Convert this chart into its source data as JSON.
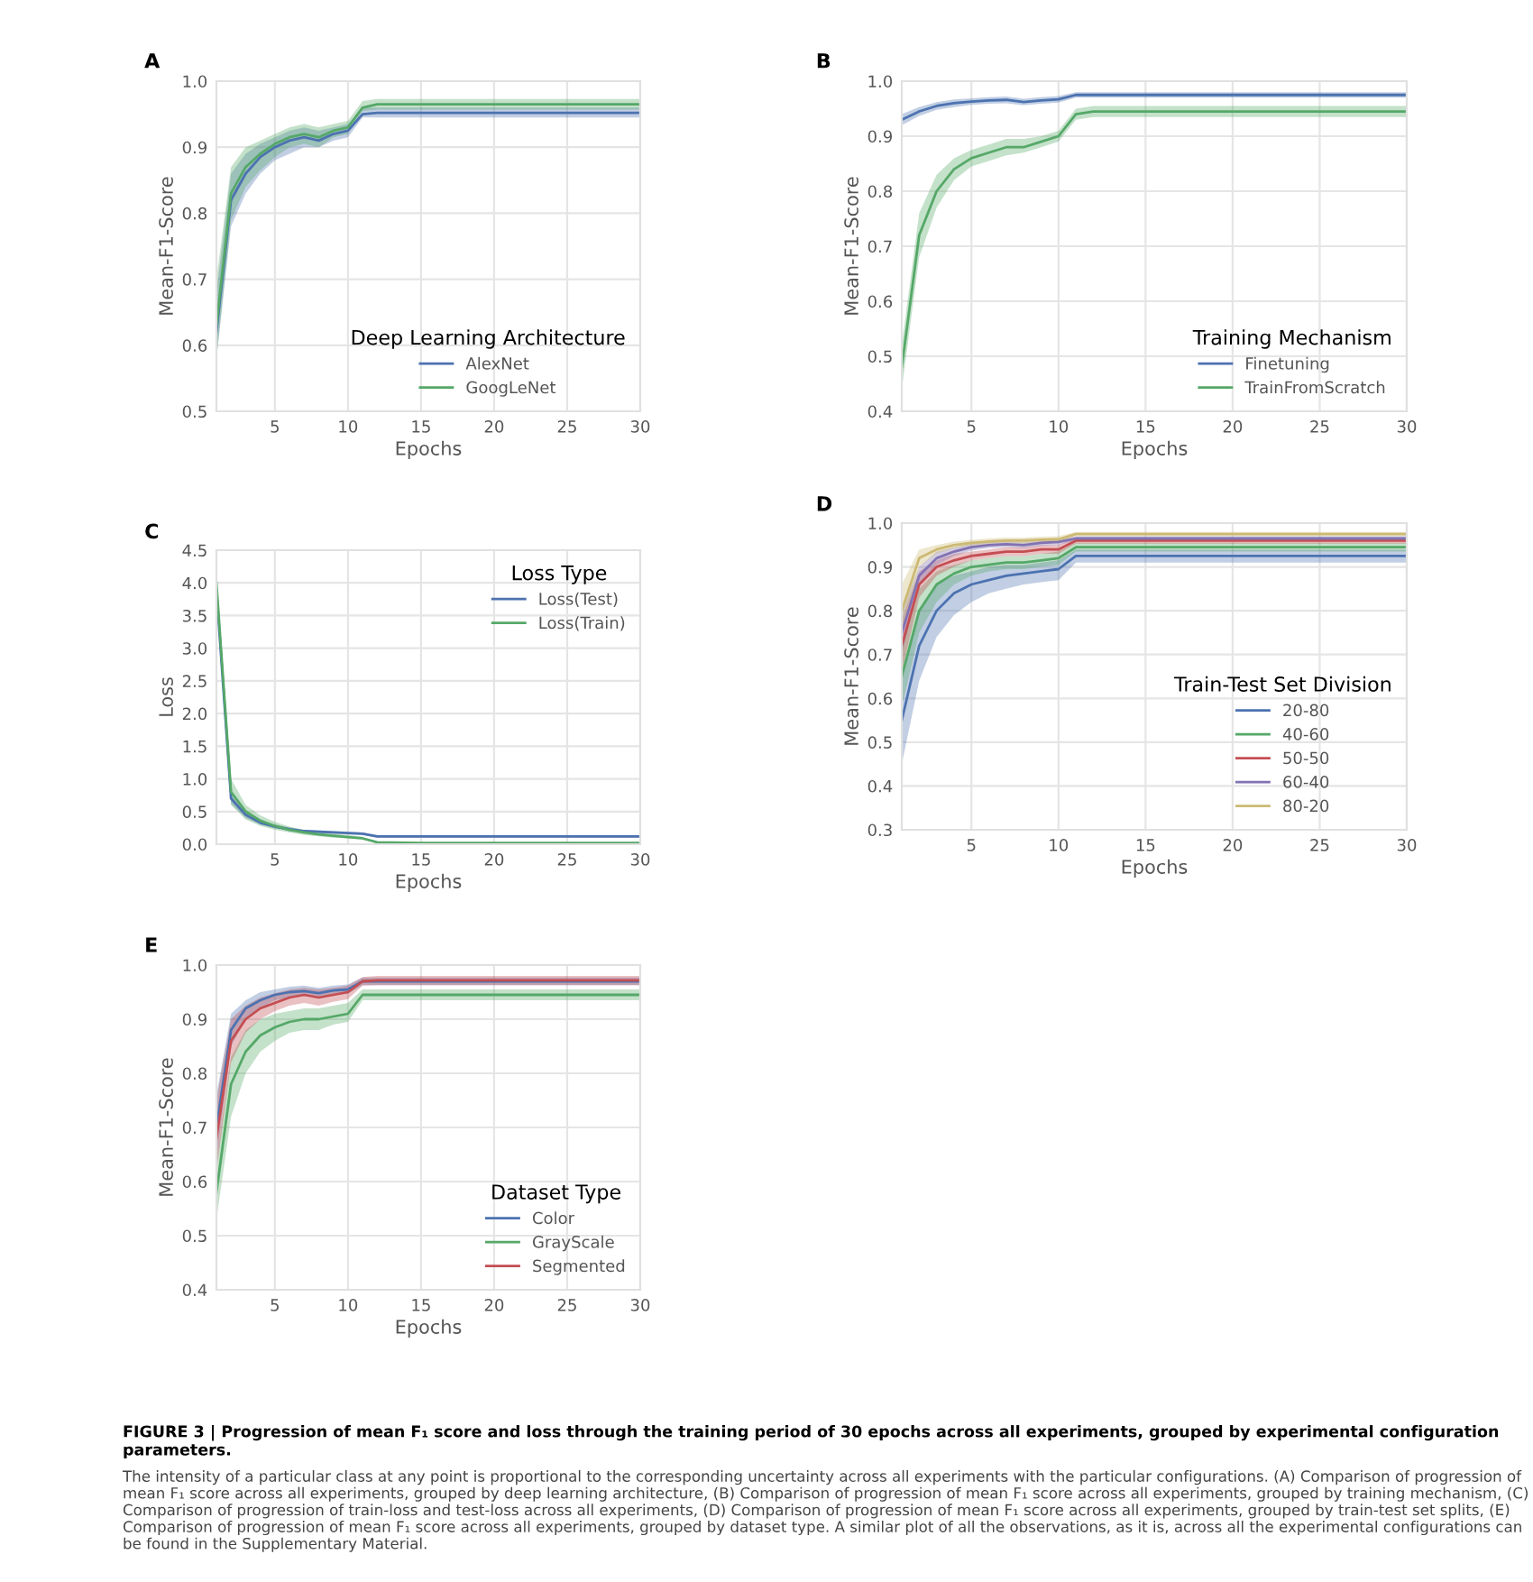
{
  "chart_data": [
    {
      "type": "line",
      "title": "A",
      "xlabel": "Epochs",
      "ylabel": "Mean-F1-Score",
      "legend_title": "Deep Learning Architecture",
      "legend": "lower right",
      "grid": true,
      "x": [
        1,
        2,
        3,
        4,
        5,
        6,
        7,
        8,
        9,
        10,
        11,
        12,
        15,
        20,
        25,
        30
      ],
      "xlim": [
        1,
        30
      ],
      "xticks": [
        5,
        10,
        15,
        20,
        25,
        30
      ],
      "ylim": [
        0.5,
        1.0
      ],
      "yticks": [
        0.5,
        0.6,
        0.7,
        0.8,
        0.9,
        {
          "value": 1.0,
          "label": "1.0"
        }
      ],
      "series": [
        {
          "name": "AlexNet",
          "color": "#4c72b0",
          "values": [
            0.62,
            0.82,
            0.86,
            0.885,
            0.9,
            0.91,
            0.915,
            0.91,
            0.92,
            0.925,
            0.95,
            0.952,
            0.952,
            0.952,
            0.952,
            0.952
          ],
          "lower": [
            0.58,
            0.78,
            0.83,
            0.86,
            0.88,
            0.89,
            0.9,
            0.9,
            0.91,
            0.915,
            0.945,
            0.945,
            0.945,
            0.945,
            0.945,
            0.945
          ],
          "upper": [
            0.68,
            0.86,
            0.89,
            0.905,
            0.915,
            0.925,
            0.93,
            0.925,
            0.93,
            0.935,
            0.96,
            0.96,
            0.96,
            0.96,
            0.96,
            0.96
          ]
        },
        {
          "name": "GoogLeNet",
          "color": "#55a868",
          "values": [
            0.63,
            0.83,
            0.87,
            0.89,
            0.905,
            0.915,
            0.92,
            0.915,
            0.925,
            0.93,
            0.96,
            0.965,
            0.965,
            0.965,
            0.965,
            0.965
          ],
          "lower": [
            0.58,
            0.79,
            0.84,
            0.865,
            0.885,
            0.9,
            0.905,
            0.9,
            0.915,
            0.92,
            0.955,
            0.957,
            0.957,
            0.957,
            0.957,
            0.957
          ],
          "upper": [
            0.7,
            0.87,
            0.9,
            0.91,
            0.92,
            0.93,
            0.935,
            0.93,
            0.935,
            0.94,
            0.97,
            0.973,
            0.973,
            0.973,
            0.973,
            0.973
          ]
        }
      ]
    },
    {
      "type": "line",
      "title": "B",
      "xlabel": "Epochs",
      "ylabel": "Mean-F1-Score",
      "legend_title": "Training Mechanism",
      "legend": "lower right",
      "grid": true,
      "x": [
        1,
        2,
        3,
        4,
        5,
        6,
        7,
        8,
        9,
        10,
        11,
        12,
        15,
        20,
        25,
        30
      ],
      "xlim": [
        1,
        30
      ],
      "xticks": [
        5,
        10,
        15,
        20,
        25,
        30
      ],
      "ylim": [
        0.4,
        1.0
      ],
      "yticks": [
        0.4,
        0.5,
        0.6,
        0.7,
        0.8,
        0.9,
        {
          "value": 1.0,
          "label": "1.0"
        }
      ],
      "series": [
        {
          "name": "Finetuning",
          "color": "#4c72b0",
          "values": [
            0.93,
            0.945,
            0.955,
            0.96,
            0.963,
            0.965,
            0.966,
            0.962,
            0.965,
            0.967,
            0.975,
            0.975,
            0.975,
            0.975,
            0.975,
            0.975
          ],
          "lower": [
            0.92,
            0.937,
            0.948,
            0.953,
            0.957,
            0.959,
            0.96,
            0.956,
            0.959,
            0.961,
            0.97,
            0.97,
            0.97,
            0.97,
            0.97,
            0.97
          ],
          "upper": [
            0.94,
            0.953,
            0.962,
            0.967,
            0.969,
            0.971,
            0.972,
            0.968,
            0.971,
            0.973,
            0.98,
            0.98,
            0.98,
            0.98,
            0.98,
            0.98
          ]
        },
        {
          "name": "TrainFromScratch",
          "color": "#55a868",
          "values": [
            0.48,
            0.72,
            0.8,
            0.84,
            0.86,
            0.87,
            0.88,
            0.88,
            0.89,
            0.9,
            0.94,
            0.945,
            0.945,
            0.945,
            0.945,
            0.945
          ],
          "lower": [
            0.44,
            0.68,
            0.77,
            0.82,
            0.845,
            0.855,
            0.865,
            0.87,
            0.88,
            0.89,
            0.93,
            0.935,
            0.935,
            0.935,
            0.935,
            0.935
          ],
          "upper": [
            0.52,
            0.76,
            0.83,
            0.86,
            0.875,
            0.885,
            0.895,
            0.895,
            0.9,
            0.91,
            0.95,
            0.955,
            0.955,
            0.955,
            0.955,
            0.955
          ]
        }
      ]
    },
    {
      "type": "line",
      "title": "C",
      "xlabel": "Epochs",
      "ylabel": "Loss",
      "legend_title": "Loss Type",
      "legend": "upper right",
      "grid": true,
      "x": [
        1,
        2,
        3,
        4,
        5,
        6,
        7,
        8,
        9,
        10,
        11,
        12,
        15,
        20,
        25,
        30
      ],
      "xlim": [
        1,
        30
      ],
      "xticks": [
        5,
        10,
        15,
        20,
        25,
        30
      ],
      "ylim": [
        0,
        4.5
      ],
      "yticks": [
        {
          "value": 0,
          "label": "0.0"
        },
        0.5,
        {
          "value": 1,
          "label": "1.0"
        },
        1.5,
        {
          "value": 2,
          "label": "2.0"
        },
        2.5,
        {
          "value": 3,
          "label": "3.0"
        },
        3.5,
        {
          "value": 4,
          "label": "4.0"
        },
        4.5
      ],
      "series": [
        {
          "name": "Loss(Test)",
          "color": "#4c72b0",
          "values": [
            3.9,
            0.7,
            0.45,
            0.33,
            0.27,
            0.23,
            0.2,
            0.19,
            0.18,
            0.17,
            0.16,
            0.12,
            0.12,
            0.12,
            0.12,
            0.12
          ],
          "lower": [
            3.8,
            0.62,
            0.4,
            0.3,
            0.24,
            0.2,
            0.18,
            0.17,
            0.16,
            0.15,
            0.14,
            0.1,
            0.1,
            0.1,
            0.1,
            0.1
          ],
          "upper": [
            4.0,
            0.8,
            0.5,
            0.36,
            0.3,
            0.26,
            0.22,
            0.21,
            0.2,
            0.19,
            0.18,
            0.14,
            0.14,
            0.14,
            0.14,
            0.14
          ]
        },
        {
          "name": "Loss(Train)",
          "color": "#55a868",
          "values": [
            4.0,
            0.8,
            0.5,
            0.36,
            0.28,
            0.22,
            0.18,
            0.15,
            0.13,
            0.11,
            0.09,
            0.03,
            0.02,
            0.02,
            0.02,
            0.02
          ],
          "lower": [
            3.9,
            0.6,
            0.38,
            0.28,
            0.22,
            0.18,
            0.14,
            0.12,
            0.1,
            0.09,
            0.07,
            0.02,
            0.01,
            0.01,
            0.01,
            0.01
          ],
          "upper": [
            4.1,
            1.0,
            0.6,
            0.44,
            0.34,
            0.27,
            0.22,
            0.19,
            0.16,
            0.14,
            0.11,
            0.04,
            0.03,
            0.03,
            0.03,
            0.03
          ]
        }
      ]
    },
    {
      "type": "line",
      "title": "D",
      "xlabel": "Epochs",
      "ylabel": "Mean-F1-Score",
      "legend_title": "Train-Test Set Division",
      "legend": "lower right",
      "grid": true,
      "x": [
        1,
        2,
        3,
        4,
        5,
        6,
        7,
        8,
        9,
        10,
        11,
        12,
        15,
        20,
        25,
        30
      ],
      "xlim": [
        1,
        30
      ],
      "xticks": [
        5,
        10,
        15,
        20,
        25,
        30
      ],
      "ylim": [
        0.3,
        1.0
      ],
      "yticks": [
        0.3,
        0.4,
        0.5,
        0.6,
        0.7,
        0.8,
        0.9,
        {
          "value": 1.0,
          "label": "1.0"
        }
      ],
      "series": [
        {
          "name": "20-80",
          "color": "#4c72b0",
          "values": [
            0.55,
            0.72,
            0.8,
            0.84,
            0.86,
            0.87,
            0.88,
            0.885,
            0.89,
            0.895,
            0.925,
            0.925,
            0.925,
            0.925,
            0.925,
            0.925
          ],
          "lower": [
            0.45,
            0.64,
            0.74,
            0.79,
            0.82,
            0.84,
            0.85,
            0.86,
            0.865,
            0.87,
            0.91,
            0.91,
            0.91,
            0.91,
            0.91,
            0.91
          ],
          "upper": [
            0.65,
            0.8,
            0.86,
            0.88,
            0.89,
            0.9,
            0.905,
            0.905,
            0.91,
            0.915,
            0.94,
            0.94,
            0.94,
            0.94,
            0.94,
            0.94
          ]
        },
        {
          "name": "40-60",
          "color": "#55a868",
          "values": [
            0.65,
            0.8,
            0.86,
            0.885,
            0.9,
            0.905,
            0.91,
            0.91,
            0.915,
            0.92,
            0.945,
            0.945,
            0.945,
            0.945,
            0.945,
            0.945
          ],
          "lower": [
            0.58,
            0.75,
            0.82,
            0.86,
            0.88,
            0.89,
            0.895,
            0.895,
            0.9,
            0.905,
            0.935,
            0.935,
            0.935,
            0.935,
            0.935,
            0.935
          ],
          "upper": [
            0.72,
            0.85,
            0.89,
            0.905,
            0.915,
            0.92,
            0.925,
            0.925,
            0.93,
            0.935,
            0.955,
            0.955,
            0.955,
            0.955,
            0.955,
            0.955
          ]
        },
        {
          "name": "50-50",
          "color": "#c44e52",
          "values": [
            0.72,
            0.86,
            0.9,
            0.915,
            0.925,
            0.93,
            0.935,
            0.935,
            0.94,
            0.94,
            0.96,
            0.96,
            0.96,
            0.96,
            0.96,
            0.96
          ],
          "lower": [
            0.66,
            0.83,
            0.88,
            0.9,
            0.915,
            0.92,
            0.925,
            0.925,
            0.93,
            0.93,
            0.953,
            0.953,
            0.953,
            0.953,
            0.953,
            0.953
          ],
          "upper": [
            0.78,
            0.89,
            0.915,
            0.93,
            0.935,
            0.94,
            0.945,
            0.945,
            0.95,
            0.95,
            0.967,
            0.967,
            0.967,
            0.967,
            0.967,
            0.967
          ]
        },
        {
          "name": "60-40",
          "color": "#8172b2",
          "values": [
            0.75,
            0.88,
            0.92,
            0.935,
            0.945,
            0.95,
            0.952,
            0.95,
            0.955,
            0.957,
            0.965,
            0.965,
            0.965,
            0.965,
            0.965,
            0.965
          ],
          "lower": [
            0.7,
            0.86,
            0.905,
            0.925,
            0.937,
            0.943,
            0.945,
            0.943,
            0.948,
            0.95,
            0.96,
            0.96,
            0.96,
            0.96,
            0.96,
            0.96
          ],
          "upper": [
            0.8,
            0.9,
            0.935,
            0.945,
            0.953,
            0.957,
            0.959,
            0.957,
            0.962,
            0.964,
            0.97,
            0.97,
            0.97,
            0.97,
            0.97,
            0.97
          ]
        },
        {
          "name": "80-20",
          "color": "#ccb974",
          "values": [
            0.8,
            0.92,
            0.94,
            0.95,
            0.955,
            0.958,
            0.96,
            0.96,
            0.962,
            0.963,
            0.975,
            0.975,
            0.975,
            0.975,
            0.975,
            0.975
          ],
          "lower": [
            0.74,
            0.9,
            0.93,
            0.942,
            0.948,
            0.951,
            0.953,
            0.953,
            0.955,
            0.956,
            0.97,
            0.97,
            0.97,
            0.97,
            0.97,
            0.97
          ],
          "upper": [
            0.86,
            0.94,
            0.95,
            0.958,
            0.962,
            0.965,
            0.967,
            0.967,
            0.969,
            0.97,
            0.98,
            0.98,
            0.98,
            0.98,
            0.98,
            0.98
          ]
        }
      ]
    },
    {
      "type": "line",
      "title": "E",
      "xlabel": "Epochs",
      "ylabel": "Mean-F1-Score",
      "legend_title": "Dataset Type",
      "legend": "lower right",
      "grid": true,
      "x": [
        1,
        2,
        3,
        4,
        5,
        6,
        7,
        8,
        9,
        10,
        11,
        12,
        15,
        20,
        25,
        30
      ],
      "xlim": [
        1,
        30
      ],
      "xticks": [
        5,
        10,
        15,
        20,
        25,
        30
      ],
      "ylim": [
        0.4,
        1.0
      ],
      "yticks": [
        0.4,
        0.5,
        0.6,
        0.7,
        0.8,
        0.9,
        {
          "value": 1.0,
          "label": "1.0"
        }
      ],
      "series": [
        {
          "name": "Color",
          "color": "#4c72b0",
          "values": [
            0.7,
            0.88,
            0.92,
            0.935,
            0.945,
            0.95,
            0.952,
            0.948,
            0.953,
            0.955,
            0.97,
            0.97,
            0.97,
            0.97,
            0.97,
            0.97
          ],
          "lower": [
            0.64,
            0.85,
            0.9,
            0.92,
            0.935,
            0.94,
            0.943,
            0.94,
            0.945,
            0.947,
            0.963,
            0.963,
            0.963,
            0.963,
            0.963,
            0.963
          ],
          "upper": [
            0.76,
            0.91,
            0.935,
            0.95,
            0.955,
            0.96,
            0.962,
            0.958,
            0.962,
            0.964,
            0.977,
            0.977,
            0.977,
            0.977,
            0.977,
            0.977
          ]
        },
        {
          "name": "GrayScale",
          "color": "#55a868",
          "values": [
            0.58,
            0.78,
            0.84,
            0.87,
            0.885,
            0.895,
            0.9,
            0.9,
            0.905,
            0.91,
            0.945,
            0.945,
            0.945,
            0.945,
            0.945,
            0.945
          ],
          "lower": [
            0.53,
            0.72,
            0.8,
            0.84,
            0.86,
            0.875,
            0.88,
            0.88,
            0.89,
            0.895,
            0.935,
            0.935,
            0.935,
            0.935,
            0.935,
            0.935
          ],
          "upper": [
            0.64,
            0.83,
            0.88,
            0.9,
            0.91,
            0.915,
            0.92,
            0.92,
            0.925,
            0.93,
            0.955,
            0.955,
            0.955,
            0.955,
            0.955,
            0.955
          ]
        },
        {
          "name": "Segmented",
          "color": "#c44e52",
          "values": [
            0.68,
            0.86,
            0.9,
            0.92,
            0.93,
            0.94,
            0.945,
            0.94,
            0.945,
            0.95,
            0.97,
            0.972,
            0.972,
            0.972,
            0.972,
            0.972
          ],
          "lower": [
            0.62,
            0.82,
            0.875,
            0.9,
            0.915,
            0.925,
            0.93,
            0.925,
            0.932,
            0.937,
            0.962,
            0.963,
            0.963,
            0.963,
            0.963,
            0.963
          ],
          "upper": [
            0.75,
            0.9,
            0.925,
            0.94,
            0.948,
            0.955,
            0.958,
            0.955,
            0.958,
            0.962,
            0.978,
            0.98,
            0.98,
            0.98,
            0.98,
            0.98
          ]
        }
      ],
      "annotations": [
        "FIGURE 3 | Progression of mean F₁ score and loss through the training period of 30 epochs across all experiments, grouped by experimental configuration parameters.",
        "The intensity of a particular class at any point is proportional to the corresponding uncertainty across all experiments with the particular configurations. (A) Comparison of progression of mean F₁ score across all experiments, grouped by deep learning architecture, (B) Comparison of progression of mean F₁ score across all experiments, grouped by training mechanism, (C) Comparison of progression of train-loss and test-loss across all experiments, (D) Comparison of progression of mean F₁ score across all experiments, grouped by train-test set splits, (E) Comparison of progression of mean F₁ score across all experiments, grouped by dataset type. A similar plot of all the observations, as it is, across all the experimental configurations can be found in the Supplementary Material."
      ]
    }
  ]
}
